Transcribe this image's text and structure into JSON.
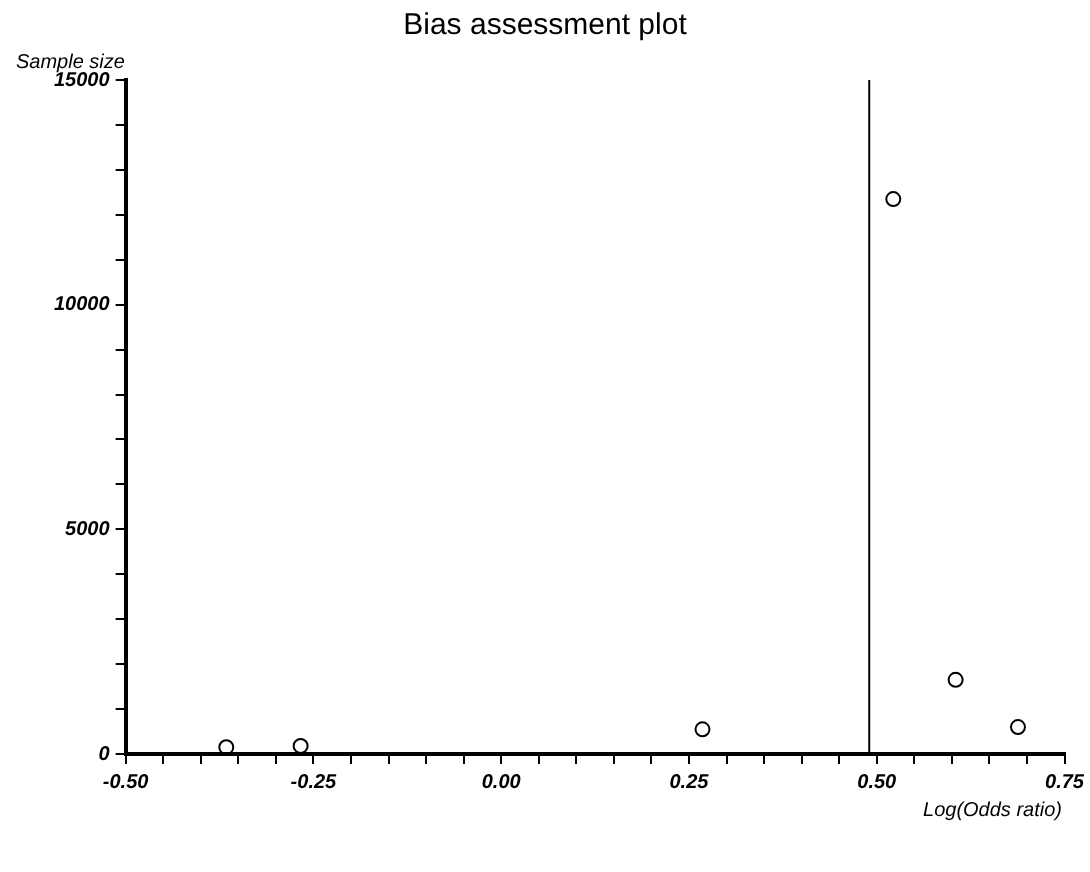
{
  "chart_data": {
    "type": "scatter",
    "title": "Bias assessment plot",
    "xlabel": "Log(Odds ratio)",
    "ylabel": "Sample size",
    "x": [
      -0.366,
      -0.267,
      0.268,
      0.522,
      0.605,
      0.688
    ],
    "series": [
      {
        "color": "#000000",
        "values": [
          150,
          180,
          550,
          12350,
          1650,
          600
        ]
      }
    ],
    "xlim": [
      -0.5,
      0.75
    ],
    "xticks": [
      {
        "value": -0.5,
        "label": "-0.50"
      },
      {
        "value": -0.45,
        "label": null
      },
      {
        "value": -0.4,
        "label": null
      },
      {
        "value": -0.35,
        "label": null
      },
      {
        "value": -0.3,
        "label": null
      },
      {
        "value": -0.25,
        "label": "-0.25"
      },
      {
        "value": -0.2,
        "label": null
      },
      {
        "value": -0.15,
        "label": null
      },
      {
        "value": -0.1,
        "label": null
      },
      {
        "value": -0.05,
        "label": null
      },
      {
        "value": 0,
        "label": "0.00"
      },
      {
        "value": 0.05,
        "label": null
      },
      {
        "value": 0.1,
        "label": null
      },
      {
        "value": 0.15,
        "label": null
      },
      {
        "value": 0.2,
        "label": null
      },
      {
        "value": 0.25,
        "label": "0.25"
      },
      {
        "value": 0.3,
        "label": null
      },
      {
        "value": 0.35,
        "label": null
      },
      {
        "value": 0.4,
        "label": null
      },
      {
        "value": 0.45,
        "label": null
      },
      {
        "value": 0.5,
        "label": "0.50"
      },
      {
        "value": 0.55,
        "label": null
      },
      {
        "value": 0.6,
        "label": null
      },
      {
        "value": 0.65,
        "label": null
      },
      {
        "value": 0.7,
        "label": null
      },
      {
        "value": 0.75,
        "label": "0.75"
      }
    ],
    "ylim": [
      0,
      15000
    ],
    "yticks": [
      0,
      {
        "value": 1000,
        "label": null
      },
      {
        "value": 2000,
        "label": null
      },
      {
        "value": 3000,
        "label": null
      },
      {
        "value": 4000,
        "label": null
      },
      5000,
      {
        "value": 6000,
        "label": null
      },
      {
        "value": 7000,
        "label": null
      },
      {
        "value": 8000,
        "label": null
      },
      {
        "value": 9000,
        "label": null
      },
      10000,
      {
        "value": 11000,
        "label": null
      },
      {
        "value": 12000,
        "label": null
      },
      {
        "value": 13000,
        "label": null
      },
      {
        "value": 14000,
        "label": null
      },
      15000
    ],
    "ref_lines": [
      {
        "axis": "x",
        "value": 0.49,
        "color": "#000000"
      }
    ],
    "grid": false,
    "legend": false,
    "marker": "circle"
  }
}
